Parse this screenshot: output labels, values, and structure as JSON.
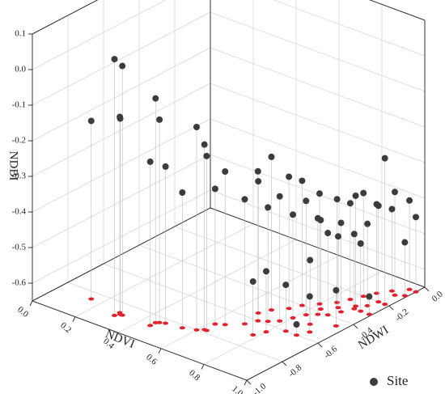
{
  "chart_data": {
    "type": "scatter3d",
    "xlabel": "NDVI",
    "ylabel": "NDWI",
    "zlabel": "NDBI",
    "xlim": [
      0,
      1
    ],
    "ylim": [
      -1,
      0
    ],
    "zlim": [
      -0.65,
      0.1
    ],
    "xticks": [
      {
        "value": 0,
        "label": "0.0"
      },
      0.2,
      0.4,
      0.6,
      0.8,
      {
        "value": 1,
        "label": "1.0"
      }
    ],
    "yticks": [
      {
        "value": -1,
        "label": "-1.0"
      },
      -0.8,
      -0.6,
      -0.4,
      -0.2,
      {
        "value": 0,
        "label": "0.0"
      }
    ],
    "zticks": [
      0.1,
      {
        "value": 0,
        "label": "0.0"
      },
      -0.1,
      -0.2,
      -0.3,
      -0.4,
      -0.5,
      -0.6
    ],
    "grid": true,
    "legend": "bottom-right",
    "projection_color": "#e3202b",
    "series": [
      {
        "name": "Site",
        "color": "#3c3c3c",
        "x": [
          0.3,
          0.32,
          0.15,
          0.31,
          0.3,
          0.45,
          0.48,
          0.45,
          0.46,
          0.55,
          0.6,
          0.62,
          0.63,
          0.62,
          0.65,
          0.7,
          0.72,
          0.68,
          0.75,
          0.7,
          0.78,
          0.8,
          0.74,
          0.82,
          0.76,
          0.85,
          0.8,
          0.88,
          0.84,
          0.9,
          0.86,
          0.92,
          0.88,
          0.94,
          0.9,
          0.95,
          0.93,
          0.96,
          0.97,
          0.98,
          0.95,
          0.99,
          1.0,
          0.85,
          0.92,
          0.96,
          0.8,
          0.88,
          0.78,
          0.99,
          0.9,
          0.83,
          0.87,
          0.91
        ],
        "y": [
          -0.9,
          -0.88,
          -0.85,
          -0.88,
          -0.87,
          -0.88,
          -0.83,
          -0.85,
          -0.84,
          -0.82,
          -0.8,
          -0.78,
          -0.78,
          -0.72,
          -0.7,
          -0.65,
          -0.6,
          -0.55,
          -0.58,
          -0.5,
          -0.55,
          -0.5,
          -0.45,
          -0.45,
          -0.4,
          -0.42,
          -0.35,
          -0.4,
          -0.3,
          -0.35,
          -0.25,
          -0.3,
          -0.2,
          -0.25,
          -0.15,
          -0.2,
          -0.1,
          -0.12,
          -0.05,
          -0.2,
          -0.3,
          -0.1,
          -0.05,
          -0.6,
          -0.55,
          -0.45,
          -0.65,
          -0.5,
          -0.7,
          -0.3,
          -0.6,
          -0.38,
          -0.33,
          -0.28
        ],
        "z": [
          0.07,
          0.05,
          -0.15,
          -0.1,
          -0.1,
          -0.19,
          -0.21,
          -0.02,
          -0.08,
          -0.27,
          -0.08,
          -0.13,
          -0.16,
          -0.27,
          -0.22,
          -0.3,
          -0.23,
          -0.28,
          -0.33,
          -0.22,
          -0.3,
          -0.36,
          -0.28,
          -0.33,
          -0.3,
          -0.38,
          -0.34,
          -0.42,
          -0.36,
          -0.4,
          -0.38,
          -0.44,
          -0.36,
          -0.42,
          -0.4,
          -0.38,
          -0.42,
          -0.36,
          -0.4,
          -0.24,
          -0.46,
          -0.5,
          -0.44,
          -0.52,
          -0.55,
          -0.55,
          -0.48,
          -0.47,
          -0.5,
          -0.6,
          -0.62,
          -0.4,
          -0.45,
          -0.34
        ]
      }
    ]
  }
}
